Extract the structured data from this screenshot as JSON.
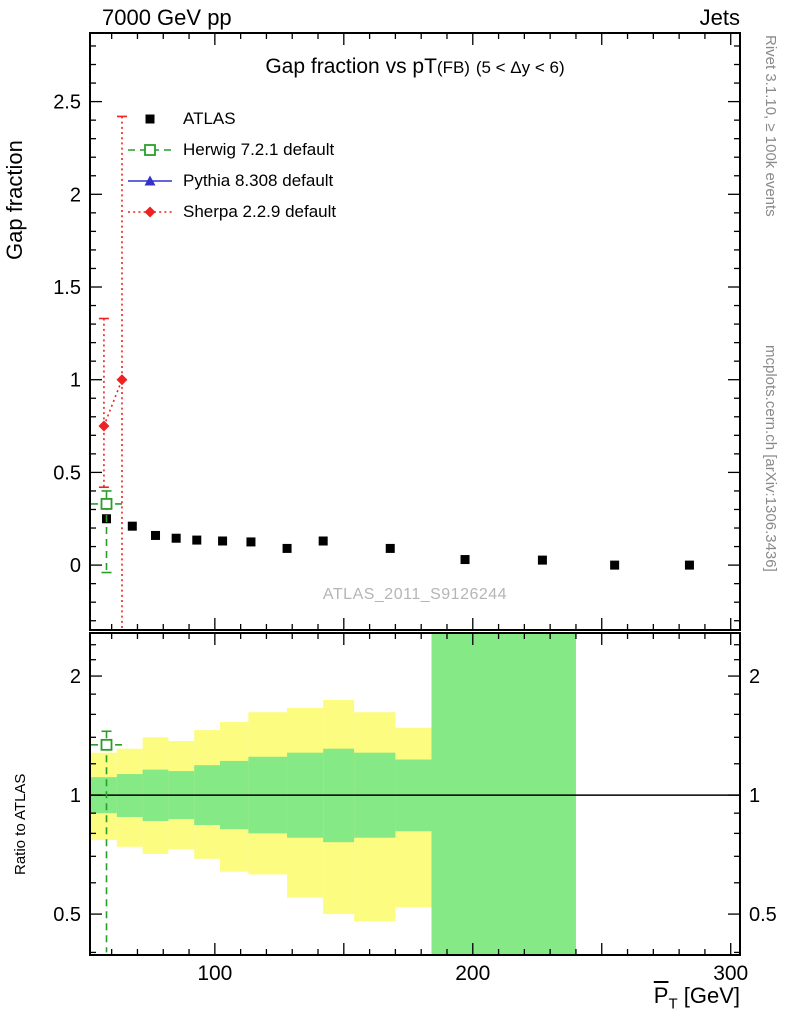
{
  "header": {
    "left": "7000 GeV pp",
    "right": "Jets"
  },
  "title": {
    "main": "Gap fraction vs pT",
    "tag": "(FB)",
    "cut": "(5 < Δy < 6)"
  },
  "watermark": "ATLAS_2011_S9126244",
  "side_notes": {
    "top": "Rivet 3.1.10, ≥ 100k events",
    "bottom": "mcplots.cern.ch [arXiv:1306.3436]"
  },
  "axes": {
    "main_ylabel": "Gap fraction",
    "ratio_ylabel": "Ratio to ATLAS",
    "xlabel": {
      "base": "P",
      "sub": "T",
      "units": " [GeV]"
    }
  },
  "colors": {
    "atlas": "#000000",
    "herwig": "#2b9d2b",
    "pythia": "#3333cc",
    "sherpa": "#ee2222",
    "band_yellow": "#fcfc81",
    "band_green": "#85e985",
    "frame": "#000000",
    "gray_text": "#8a8a8a",
    "watermark": "#b5b5b5"
  },
  "legend": [
    {
      "label": "ATLAS",
      "marker": "square-filled",
      "color": "#000000",
      "line": "none"
    },
    {
      "label": "Herwig 7.2.1 default",
      "marker": "square-open",
      "color": "#2b9d2b",
      "line": "dashed"
    },
    {
      "label": "Pythia 8.308 default",
      "marker": "triangle-filled",
      "color": "#3333cc",
      "line": "solid"
    },
    {
      "label": "Sherpa 2.2.9 default",
      "marker": "diamond-filled",
      "color": "#ee2222",
      "line": "dotted"
    }
  ],
  "chart_data": [
    {
      "type": "scatter",
      "panel": "main",
      "title": "Gap fraction vs pT (FB) (5 < Δy < 6)",
      "xlabel": "PT [GeV]",
      "ylabel": "Gap fraction",
      "xlim": [
        51.6,
        303.6
      ],
      "ylim": [
        -0.35,
        2.87
      ],
      "xticks_major": [
        100,
        150,
        200,
        250,
        300
      ],
      "xticks_labeled": [
        100,
        200,
        300
      ],
      "yticks": [
        0,
        0.5,
        1,
        1.5,
        2,
        2.5
      ],
      "ytick_labels": [
        "0",
        "0.5",
        "1",
        "1.5",
        "2",
        "2.5"
      ],
      "grid": false,
      "legend_position": "top-left",
      "series": [
        {
          "name": "ATLAS",
          "marker": "square-filled",
          "color": "#000000",
          "line": "none",
          "x": [
            58,
            68,
            77,
            85,
            93,
            103,
            114,
            128,
            142,
            168,
            197,
            227,
            255,
            284
          ],
          "y": [
            0.25,
            0.21,
            0.16,
            0.145,
            0.135,
            0.13,
            0.125,
            0.09,
            0.13,
            0.09,
            0.03,
            0.027,
            0.0,
            0.0
          ]
        },
        {
          "name": "Herwig 7.2.1 default",
          "marker": "square-open",
          "color": "#2b9d2b",
          "line": "dashed",
          "points": [
            {
              "x": 58,
              "y": 0.33,
              "ylo": -0.04,
              "yhi": 0.4,
              "xlo": 52,
              "xhi": 64
            }
          ]
        },
        {
          "name": "Pythia 8.308 default",
          "marker": "triangle-filled",
          "color": "#3333cc",
          "line": "solid",
          "points": []
        },
        {
          "name": "Sherpa 2.2.9 default",
          "marker": "diamond-filled",
          "color": "#ee2222",
          "line": "dotted",
          "points": [
            {
              "x": 57,
              "y": 0.75,
              "ylo": 0.42,
              "yhi": 1.33
            },
            {
              "x": 64,
              "y": 1.0,
              "ylo": -0.35,
              "yhi": 2.42,
              "clip_lo": true
            }
          ]
        }
      ]
    },
    {
      "type": "ratio-bands",
      "panel": "ratio",
      "yscale": "log",
      "ylim": [
        0.394,
        2.57
      ],
      "yticks": [
        0.5,
        1,
        2
      ],
      "ytick_labels": [
        "0.5",
        "1",
        "2"
      ],
      "yticks_minor": [
        0.4,
        0.6,
        0.7,
        0.8,
        0.9,
        1.2,
        1.4,
        1.6,
        1.8,
        2.2,
        2.4
      ],
      "reference_line": 1,
      "bands": {
        "yellow": [
          [
            52,
            62,
            0.77,
            1.28
          ],
          [
            62,
            72,
            0.74,
            1.31
          ],
          [
            72,
            82,
            0.71,
            1.4
          ],
          [
            82,
            92,
            0.73,
            1.37
          ],
          [
            92,
            102,
            0.69,
            1.46
          ],
          [
            102,
            113,
            0.64,
            1.53
          ],
          [
            113,
            128,
            0.63,
            1.62
          ],
          [
            128,
            142,
            0.55,
            1.66
          ],
          [
            142,
            154,
            0.5,
            1.74
          ],
          [
            154,
            170,
            0.48,
            1.62
          ],
          [
            170,
            184,
            0.52,
            1.48
          ]
        ],
        "green": [
          [
            52,
            62,
            0.9,
            1.11
          ],
          [
            62,
            72,
            0.88,
            1.13
          ],
          [
            72,
            82,
            0.86,
            1.16
          ],
          [
            82,
            92,
            0.87,
            1.15
          ],
          [
            92,
            102,
            0.84,
            1.19
          ],
          [
            102,
            113,
            0.82,
            1.22
          ],
          [
            113,
            128,
            0.8,
            1.25
          ],
          [
            128,
            142,
            0.78,
            1.28
          ],
          [
            142,
            154,
            0.76,
            1.31
          ],
          [
            154,
            170,
            0.78,
            1.28
          ],
          [
            170,
            184,
            0.81,
            1.23
          ],
          [
            184,
            240,
            0.394,
            2.57
          ]
        ]
      },
      "series": [
        {
          "name": "Herwig 7.2.1 default",
          "marker": "square-open",
          "color": "#2b9d2b",
          "line": "dashed",
          "points": [
            {
              "x": 58,
              "y": 1.34,
              "ylo": 0.4,
              "yhi": 1.45,
              "xlo": 52,
              "xhi": 64,
              "clip_lo": true
            }
          ]
        }
      ]
    }
  ]
}
